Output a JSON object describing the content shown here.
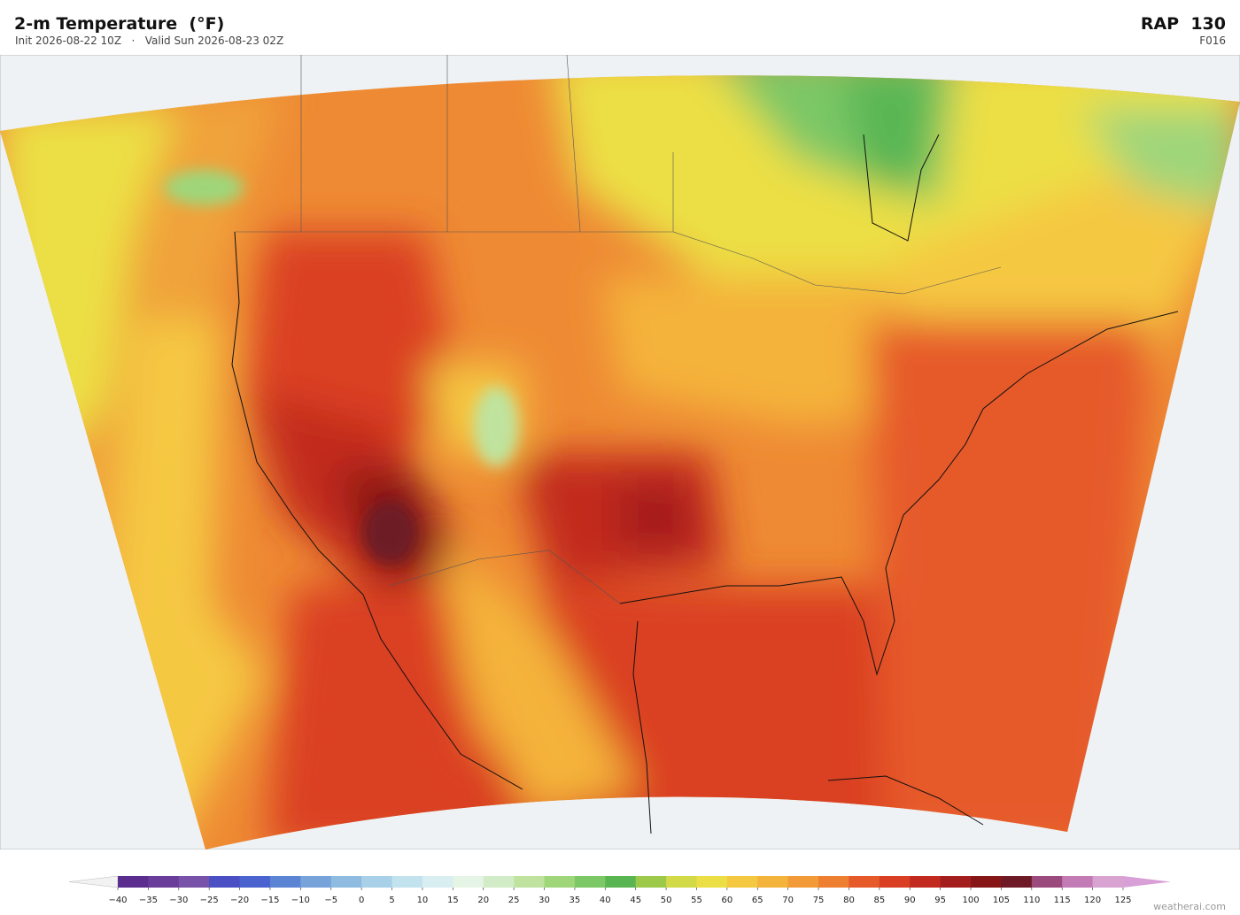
{
  "header": {
    "title": "2-m Temperature  (°F)",
    "subtitle": "Init 2026-08-22 10Z   ·   Valid Sun 2026-08-23 02Z",
    "model": "RAP  130",
    "forecast_hour": "F016"
  },
  "colorbar": {
    "ticks": [
      {
        "value": -40,
        "label": "−40"
      },
      {
        "value": -35,
        "label": "−35"
      },
      {
        "value": -30,
        "label": "−30"
      },
      {
        "value": -25,
        "label": "−25"
      },
      {
        "value": -20,
        "label": "−20"
      },
      {
        "value": -15,
        "label": "−15"
      },
      {
        "value": -10,
        "label": "−10"
      },
      {
        "value": -5,
        "label": "−5"
      },
      0,
      5,
      10,
      15,
      20,
      25,
      30,
      35,
      40,
      45,
      50,
      55,
      60,
      65,
      70,
      75,
      80,
      85,
      90,
      95,
      100,
      105,
      110,
      115,
      120,
      125
    ],
    "colors": [
      "#5b2d8e",
      "#6a3d9a",
      "#7851a9",
      "#4a4fc4",
      "#4b63cf",
      "#5b85d4",
      "#77a3da",
      "#8fbbe0",
      "#a8d0e8",
      "#c2e2ee",
      "#d8eef0",
      "#e6f4e6",
      "#d3ecc8",
      "#bfe39e",
      "#9fd67a",
      "#7cc766",
      "#59b552",
      "#9dc94a",
      "#d3da47",
      "#ecdf45",
      "#f5c842",
      "#f4b33b",
      "#f29a37",
      "#ee7f30",
      "#e65a2a",
      "#da3f23",
      "#c22a1f",
      "#a41d1d",
      "#861616",
      "#6d1a26",
      "#9b4a7e",
      "#c27bb5",
      "#d8a3d0"
    ],
    "under_color": "#f2f2f2",
    "over_color": "#d9a0d8"
  },
  "watermark": "weatherai.com"
}
